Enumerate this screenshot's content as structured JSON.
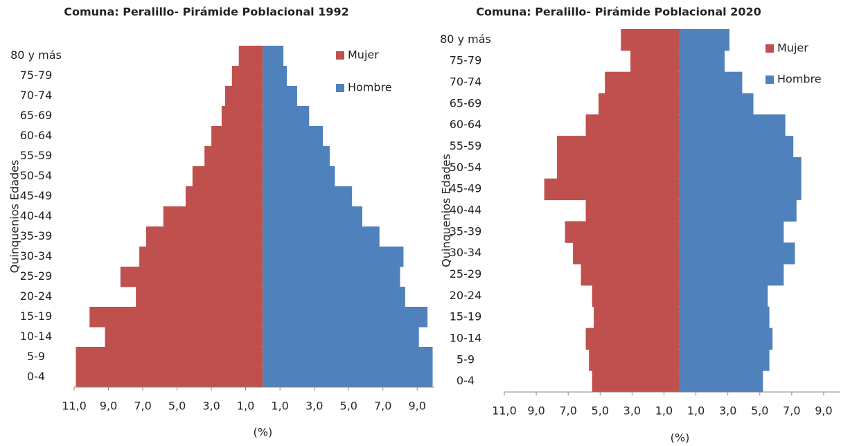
{
  "chart_data": [
    {
      "type": "bar",
      "title": "Comuna: Peralillo-  Pirámide Poblacional 1992",
      "xlabel": "(%)",
      "ylabel": "Quinquenios Edades",
      "categories": [
        "0-4",
        "5-9",
        "10-14",
        "15-19",
        "20-24",
        "25-29",
        "30-34",
        "35-39",
        "40-44",
        "45-49",
        "50-54",
        "55-59",
        "60-64",
        "65-69",
        "70-74",
        "75-79",
        "80 y más"
      ],
      "series": [
        {
          "name": "Mujer",
          "color": "#c0504d",
          "values": [
            10.9,
            10.9,
            9.2,
            10.1,
            7.4,
            8.3,
            7.2,
            6.8,
            5.8,
            4.5,
            4.1,
            3.4,
            3.0,
            2.4,
            2.2,
            1.8,
            1.4
          ]
        },
        {
          "name": "Hombre",
          "color": "#4f81bd",
          "values": [
            9.9,
            9.9,
            9.1,
            9.6,
            8.3,
            8.0,
            8.2,
            6.8,
            5.8,
            5.2,
            4.2,
            3.9,
            3.5,
            2.7,
            2.0,
            1.4,
            1.2
          ]
        }
      ],
      "xlim": [
        -11,
        10
      ],
      "xticks": [
        {
          "value": -11,
          "label": "11,0"
        },
        {
          "value": -9,
          "label": "9,0"
        },
        {
          "value": -7,
          "label": "7,0"
        },
        {
          "value": -5,
          "label": "5,0"
        },
        {
          "value": -3,
          "label": "3,0"
        },
        {
          "value": -1,
          "label": "1,0"
        },
        {
          "value": 1,
          "label": "1,0"
        },
        {
          "value": 3,
          "label": "3,0"
        },
        {
          "value": 5,
          "label": "5,0"
        },
        {
          "value": 7,
          "label": "7,0"
        },
        {
          "value": 9,
          "label": "9,0"
        }
      ]
    },
    {
      "type": "bar",
      "title": "Comuna: Peralillo-  Pirámide Poblacional 2020",
      "xlabel": "(%)",
      "ylabel": "Quinquenios  Edades",
      "categories": [
        "0-4",
        "5-9",
        "10-14",
        "15-19",
        "20-24",
        "25-29",
        "30-34",
        "35-39",
        "40-44",
        "45-49",
        "50-54",
        "55-59",
        "60-64",
        "65-69",
        "70-74",
        "75-79",
        "80 y más"
      ],
      "series": [
        {
          "name": "Mujer",
          "color": "#c0504d",
          "values": [
            5.5,
            5.7,
            5.9,
            5.4,
            5.5,
            6.2,
            6.7,
            7.2,
            5.9,
            8.5,
            7.7,
            7.7,
            5.9,
            5.1,
            4.7,
            3.1,
            3.7
          ]
        },
        {
          "name": "Hombre",
          "color": "#4f81bd",
          "values": [
            5.2,
            5.6,
            5.8,
            5.6,
            5.5,
            6.5,
            7.2,
            6.5,
            7.3,
            7.6,
            7.6,
            7.1,
            6.6,
            4.6,
            3.9,
            2.8,
            3.1
          ]
        }
      ],
      "xlim": [
        -11,
        10
      ],
      "xticks": [
        {
          "value": -11,
          "label": "11,0"
        },
        {
          "value": -9,
          "label": "9,0"
        },
        {
          "value": -7,
          "label": "7,0"
        },
        {
          "value": -5,
          "label": "5,0"
        },
        {
          "value": -3,
          "label": "3,0"
        },
        {
          "value": -1,
          "label": "1,0"
        },
        {
          "value": 1,
          "label": "1,0"
        },
        {
          "value": 3,
          "label": "3,0"
        },
        {
          "value": 5,
          "label": "5,0"
        },
        {
          "value": 7,
          "label": "7,0"
        },
        {
          "value": 9,
          "label": "9,0"
        }
      ]
    }
  ]
}
